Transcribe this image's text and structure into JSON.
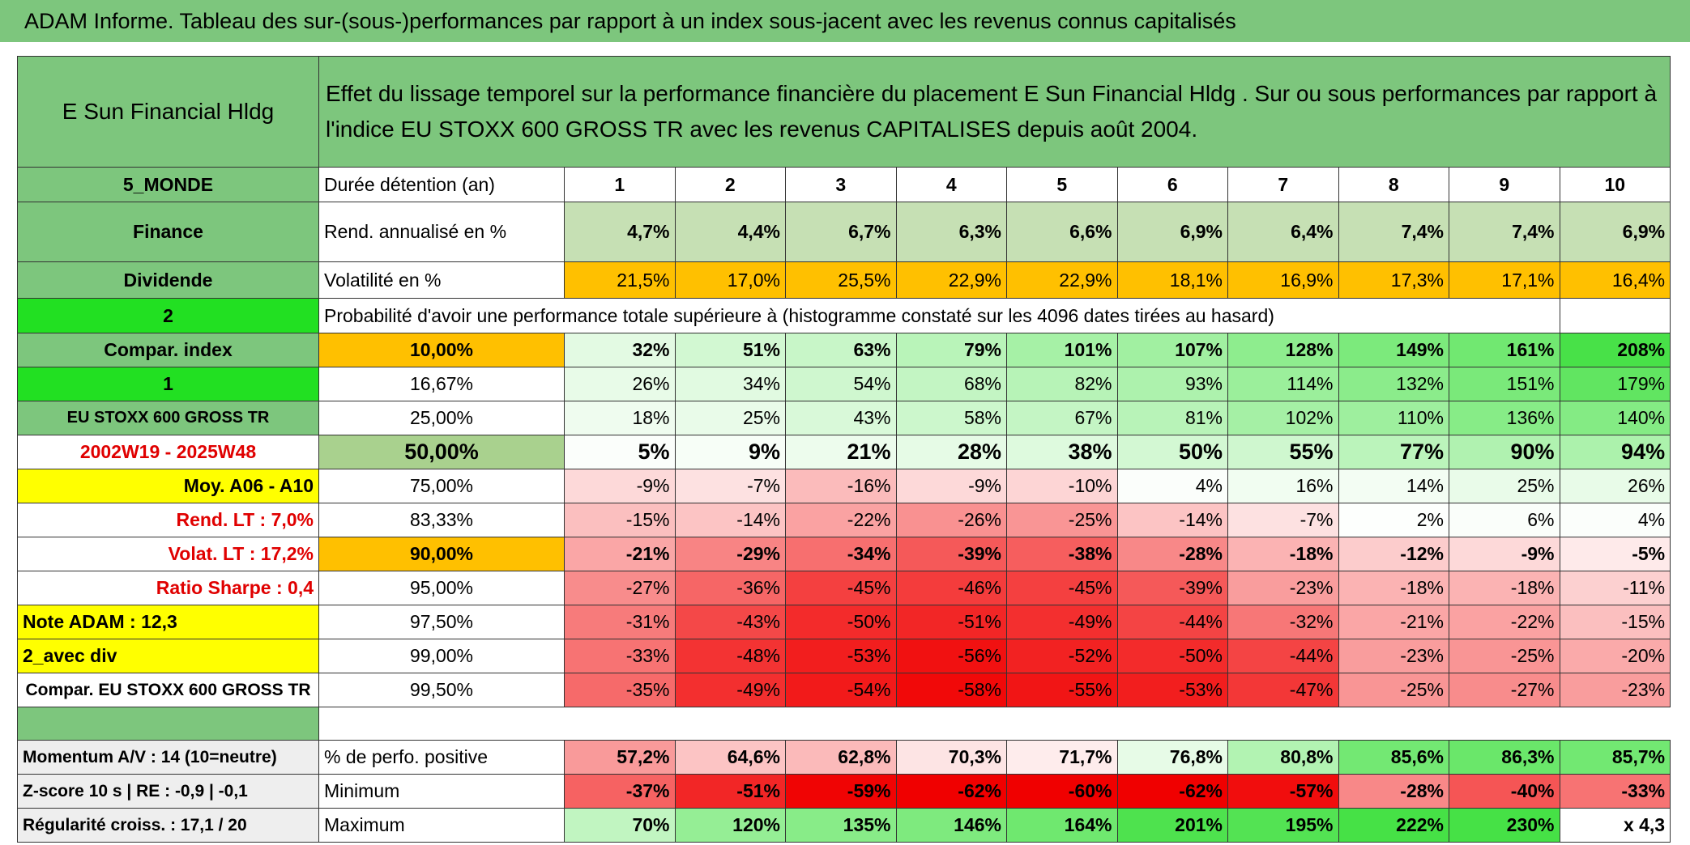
{
  "title": "ADAM Informe. Tableau des sur-(sous-)performances par rapport à un index sous-jacent avec les revenus connus capitalisés",
  "header": {
    "name": "E Sun Financial Hldg",
    "description": "Effet du lissage temporel sur la performance financière du placement E Sun Financial Hldg . Sur ou sous performances par rapport à l'indice EU STOXX 600 GROSS TR avec les revenus CAPITALISES depuis août 2004."
  },
  "table": {
    "top_rows": [
      [
        "5_MONDE",
        "Durée détention (an)",
        "1",
        "2",
        "3",
        "4",
        "5",
        "6",
        "7",
        "8",
        "9",
        "10"
      ],
      [
        "Finance",
        "Rend. annualisé en %",
        "4,7%",
        "4,4%",
        "6,7%",
        "6,3%",
        "6,6%",
        "6,9%",
        "6,4%",
        "7,4%",
        "7,4%",
        "6,9%"
      ],
      [
        "Dividende",
        "Volatilité en %",
        "21,5%",
        "17,0%",
        "25,5%",
        "22,9%",
        "22,9%",
        "18,1%",
        "16,9%",
        "17,3%",
        "17,1%",
        "16,4%"
      ]
    ],
    "probability_row": {
      "label": "2",
      "text": "Probabilité d'avoir une performance totale supérieure à (histogramme constaté sur les 4096 dates tirées au hasard)"
    },
    "quantile_rows": [
      [
        "Compar. index",
        "10,00%",
        "32%",
        "51%",
        "63%",
        "79%",
        "101%",
        "107%",
        "128%",
        "149%",
        "161%",
        "208%"
      ],
      [
        "1",
        "16,67%",
        "26%",
        "34%",
        "54%",
        "68%",
        "82%",
        "93%",
        "114%",
        "132%",
        "151%",
        "179%"
      ],
      [
        "EU STOXX 600 GROSS TR",
        "25,00%",
        "18%",
        "25%",
        "43%",
        "58%",
        "67%",
        "81%",
        "102%",
        "110%",
        "136%",
        "140%"
      ],
      [
        "2002W19 - 2025W48",
        "50,00%",
        "5%",
        "9%",
        "21%",
        "28%",
        "38%",
        "50%",
        "55%",
        "77%",
        "90%",
        "94%"
      ],
      [
        "Moy. A06 - A10",
        "75,00%",
        "-9%",
        "-7%",
        "-16%",
        "-9%",
        "-10%",
        "4%",
        "16%",
        "14%",
        "25%",
        "26%"
      ],
      [
        "Rend. LT :   7,0%",
        "83,33%",
        "-15%",
        "-14%",
        "-22%",
        "-26%",
        "-25%",
        "-14%",
        "-7%",
        "2%",
        "6%",
        "4%"
      ],
      [
        "Volat. LT :   17,2%",
        "90,00%",
        "-21%",
        "-29%",
        "-34%",
        "-39%",
        "-38%",
        "-28%",
        "-18%",
        "-12%",
        "-9%",
        "-5%"
      ],
      [
        "Ratio Sharpe :   0,4",
        "95,00%",
        "-27%",
        "-36%",
        "-45%",
        "-46%",
        "-45%",
        "-39%",
        "-23%",
        "-18%",
        "-18%",
        "-11%"
      ],
      [
        "Note ADAM : 12,3",
        "97,50%",
        "-31%",
        "-43%",
        "-50%",
        "-51%",
        "-49%",
        "-44%",
        "-32%",
        "-21%",
        "-22%",
        "-15%"
      ],
      [
        "2_avec div",
        "99,00%",
        "-33%",
        "-48%",
        "-53%",
        "-56%",
        "-52%",
        "-50%",
        "-44%",
        "-23%",
        "-25%",
        "-20%"
      ],
      [
        "Compar. EU STOXX 600 GROSS TR",
        "99,50%",
        "-35%",
        "-49%",
        "-54%",
        "-58%",
        "-55%",
        "-53%",
        "-47%",
        "-25%",
        "-27%",
        "-23%"
      ]
    ],
    "summary_rows": [
      [
        "Momentum A/V : 14 (10=neutre)",
        "% de perfo. positive",
        "57,2%",
        "64,6%",
        "62,8%",
        "70,3%",
        "71,7%",
        "76,8%",
        "80,8%",
        "85,6%",
        "86,3%",
        "85,7%"
      ],
      [
        "Z-score 10 s | RE : -0,9 | -0,1",
        "Minimum",
        "-37%",
        "-51%",
        "-59%",
        "-62%",
        "-60%",
        "-62%",
        "-57%",
        "-28%",
        "-40%",
        "-33%"
      ],
      [
        "Régularité croiss. : 17,1 / 20",
        "Maximum",
        "70%",
        "120%",
        "135%",
        "146%",
        "164%",
        "201%",
        "195%",
        "222%",
        "230%",
        "x 4,3"
      ]
    ]
  }
}
